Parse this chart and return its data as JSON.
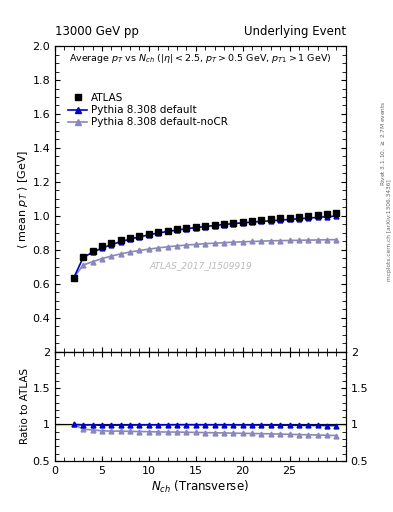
{
  "title_left": "13000 GeV pp",
  "title_right": "Underlying Event",
  "subtitle": "Average $p_T$ vs $N_{ch}$ ($|\\eta| < 2.5$, $p_T > 0.5$ GeV, $p_{T1} > 1$ GeV)",
  "ylabel_main": "$\\langle$ mean $p_T$ $\\rangle$ [GeV]",
  "ylabel_ratio": "Ratio to ATLAS",
  "xlabel": "$N_{ch}$ (Transverse)",
  "watermark": "ATLAS_2017_I1509919",
  "right_label": "mcplots.cern.ch [arXiv:1306.3436]",
  "right_label2": "Rivet 3.1.10, $\\geq$ 2.7M events",
  "atlas_x": [
    2,
    3,
    4,
    5,
    6,
    7,
    8,
    9,
    10,
    11,
    12,
    13,
    14,
    15,
    16,
    17,
    18,
    19,
    20,
    21,
    22,
    23,
    24,
    25,
    26,
    27,
    28,
    29,
    30
  ],
  "atlas_y": [
    0.635,
    0.76,
    0.79,
    0.82,
    0.84,
    0.855,
    0.87,
    0.882,
    0.893,
    0.905,
    0.913,
    0.92,
    0.928,
    0.935,
    0.942,
    0.948,
    0.954,
    0.96,
    0.965,
    0.97,
    0.975,
    0.98,
    0.985,
    0.99,
    0.995,
    1.0,
    1.005,
    1.01,
    1.015
  ],
  "pythia_default_x": [
    2,
    3,
    4,
    5,
    6,
    7,
    8,
    9,
    10,
    11,
    12,
    13,
    14,
    15,
    16,
    17,
    18,
    19,
    20,
    21,
    22,
    23,
    24,
    25,
    26,
    27,
    28,
    29,
    30
  ],
  "pythia_default_y": [
    0.635,
    0.755,
    0.785,
    0.81,
    0.83,
    0.848,
    0.863,
    0.876,
    0.888,
    0.899,
    0.908,
    0.916,
    0.924,
    0.931,
    0.937,
    0.943,
    0.949,
    0.954,
    0.959,
    0.963,
    0.967,
    0.971,
    0.975,
    0.979,
    0.983,
    0.987,
    0.991,
    0.995,
    0.999
  ],
  "pythia_nocr_x": [
    2,
    3,
    4,
    5,
    6,
    7,
    8,
    9,
    10,
    11,
    12,
    13,
    14,
    15,
    16,
    17,
    18,
    19,
    20,
    21,
    22,
    23,
    24,
    25,
    26,
    27,
    28,
    29,
    30
  ],
  "pythia_nocr_y": [
    0.635,
    0.71,
    0.73,
    0.748,
    0.763,
    0.776,
    0.787,
    0.796,
    0.804,
    0.811,
    0.818,
    0.823,
    0.828,
    0.832,
    0.836,
    0.839,
    0.842,
    0.845,
    0.847,
    0.849,
    0.851,
    0.853,
    0.854,
    0.855,
    0.856,
    0.857,
    0.858,
    0.859,
    0.86
  ],
  "ylim_main": [
    0.2,
    2.0
  ],
  "ylim_ratio": [
    0.5,
    2.0
  ],
  "yticks_main": [
    0.4,
    0.6,
    0.8,
    1.0,
    1.2,
    1.4,
    1.6,
    1.8,
    2.0
  ],
  "yticks_ratio": [
    0.5,
    1.0,
    1.5,
    2.0
  ],
  "xlim": [
    0,
    31
  ],
  "color_atlas": "#000000",
  "color_default": "#0000cc",
  "color_nocr": "#8888bb",
  "color_ratio_band": "#ccff00",
  "bg_color": "#ffffff"
}
